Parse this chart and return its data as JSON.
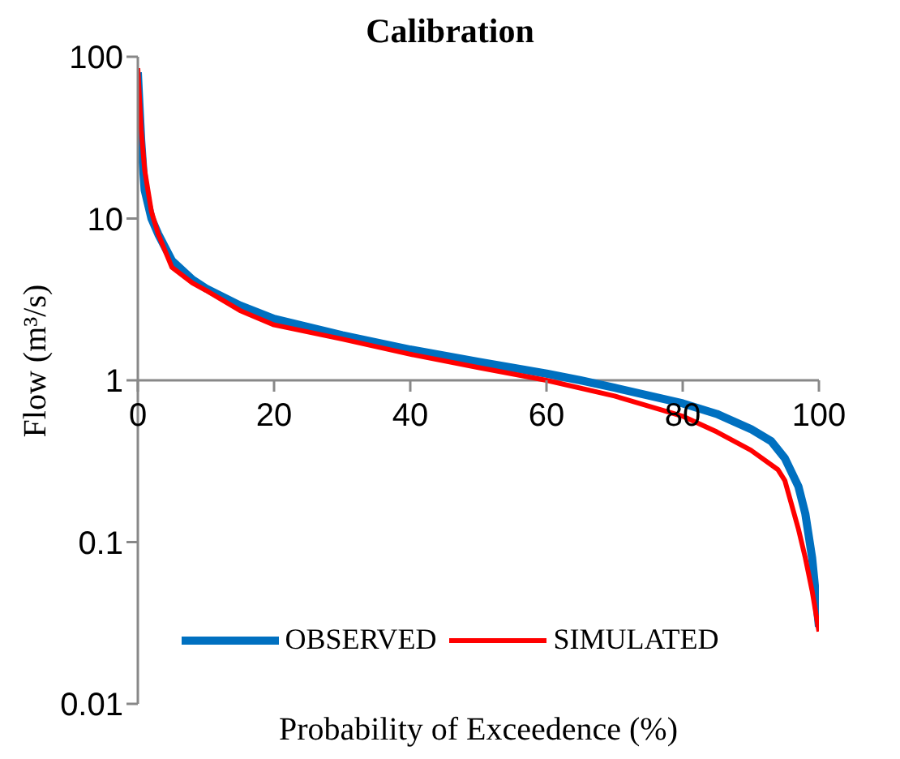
{
  "chart_data": {
    "type": "line",
    "title": "Calibration",
    "xlabel": "Probability of Exceedence (%)",
    "ylabel": "Flow (m³/s)",
    "log": "y",
    "xlim": [
      0,
      100
    ],
    "xticks": [
      0,
      20,
      40,
      60,
      80,
      100
    ],
    "ylim": [
      0.01,
      100
    ],
    "yticks": [
      0.01,
      0.1,
      1,
      10,
      100
    ],
    "legend": "bottom",
    "marker": "none",
    "series": [
      {
        "name": "OBSERVED",
        "color": "#0070c0",
        "x": [
          0,
          0.5,
          1,
          2,
          3,
          5,
          8,
          10,
          15,
          20,
          30,
          40,
          50,
          60,
          65,
          70,
          80,
          85,
          90,
          93,
          95,
          97,
          98,
          99,
          100
        ],
        "values": [
          80,
          30,
          15,
          10,
          8,
          5.5,
          4.2,
          3.7,
          2.9,
          2.4,
          1.9,
          1.55,
          1.3,
          1.1,
          1.0,
          0.9,
          0.72,
          0.62,
          0.5,
          0.42,
          0.33,
          0.22,
          0.15,
          0.08,
          0.03
        ]
      },
      {
        "name": "SIMULATED",
        "color": "#ff0000",
        "x": [
          0,
          0.5,
          1,
          2,
          3,
          5,
          8,
          10,
          15,
          20,
          30,
          40,
          50,
          60,
          70,
          80,
          85,
          90,
          94,
          95,
          97,
          98,
          99,
          100
        ],
        "values": [
          85,
          35,
          20,
          11,
          8,
          5,
          4,
          3.6,
          2.7,
          2.2,
          1.8,
          1.45,
          1.2,
          1.0,
          0.8,
          0.6,
          0.48,
          0.37,
          0.28,
          0.24,
          0.12,
          0.08,
          0.05,
          0.028
        ]
      }
    ]
  }
}
